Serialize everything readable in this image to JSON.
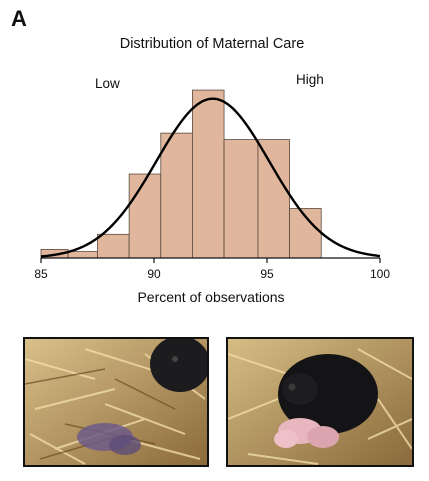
{
  "panel_label": "A",
  "chart_data": {
    "type": "bar",
    "title": "Distribution of Maternal Care",
    "xlabel": "Percent of observations",
    "ylabel": "",
    "annotations": {
      "left": "Low",
      "right": "High"
    },
    "xlim": [
      85,
      100
    ],
    "x_ticks": [
      85,
      90,
      95,
      100
    ],
    "bin_width": 1.5,
    "bins": [
      {
        "start": 85.0,
        "end": 86.2,
        "value": 4
      },
      {
        "start": 86.2,
        "end": 87.5,
        "value": 3
      },
      {
        "start": 87.5,
        "end": 88.9,
        "value": 11
      },
      {
        "start": 88.9,
        "end": 90.3,
        "value": 39
      },
      {
        "start": 90.3,
        "end": 91.7,
        "value": 58
      },
      {
        "start": 91.7,
        "end": 93.1,
        "value": 78
      },
      {
        "start": 93.1,
        "end": 94.6,
        "value": 55
      },
      {
        "start": 94.6,
        "end": 96.0,
        "value": 55
      },
      {
        "start": 96.0,
        "end": 97.4,
        "value": 23
      }
    ],
    "ylim": [
      0,
      85
    ],
    "fit_curve": {
      "type": "normal",
      "mean": 92.6,
      "sd": 2.5,
      "peak": 74
    },
    "bar_color": "#e0b79c",
    "bar_edge": "#5a4a40",
    "curve_color": "#000000"
  },
  "photos": [
    {
      "caption_key": "low",
      "description_icon": "mouse-nest-low-care"
    },
    {
      "caption_key": "high",
      "description_icon": "mouse-nest-high-care"
    }
  ]
}
